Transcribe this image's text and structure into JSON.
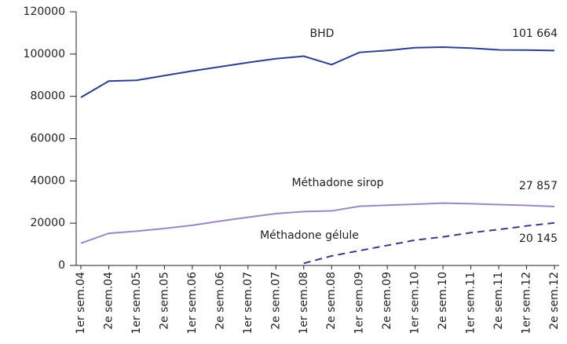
{
  "chart_data": {
    "type": "line",
    "categories": [
      "1er sem.04",
      "2e sem.04",
      "1er sem.05",
      "2e sem.05",
      "1er sem.06",
      "2e sem.06",
      "1er sem.07",
      "2e sem.07",
      "1er sem.08",
      "2e sem.08",
      "1er sem.09",
      "2e sem.09",
      "1er sem.10",
      "2e sem.10",
      "1er sem.11",
      "2e sem.11",
      "1er sem.12",
      "2e sem.12"
    ],
    "series": [
      {
        "name": "BHD",
        "color": "#2b3f8f",
        "dashed": false,
        "values": [
          79500,
          87200,
          87600,
          89800,
          92000,
          94000,
          96000,
          97800,
          99000,
          95000,
          100800,
          101700,
          103000,
          103300,
          102800,
          102000,
          101900,
          101664
        ],
        "value_labels": [
          null,
          null,
          null,
          null,
          null,
          null,
          null,
          null,
          null,
          null,
          null,
          null,
          null,
          null,
          null,
          null,
          null,
          "101 664"
        ]
      },
      {
        "name": "Méthadone sirop",
        "color": "#9b87c4",
        "dashed": false,
        "values": [
          10500,
          15200,
          16200,
          17500,
          19000,
          21000,
          22800,
          24500,
          25500,
          25800,
          28000,
          28500,
          29000,
          29500,
          29200,
          28800,
          28400,
          27857
        ],
        "value_labels": [
          null,
          null,
          null,
          null,
          null,
          null,
          null,
          null,
          null,
          null,
          null,
          null,
          null,
          null,
          null,
          null,
          null,
          "27 857"
        ]
      },
      {
        "name": "Méthadone gélule",
        "color": "#3b3a8a",
        "dashed": true,
        "values": [
          null,
          null,
          null,
          null,
          null,
          null,
          null,
          null,
          1000,
          4500,
          7000,
          9500,
          12000,
          13500,
          15500,
          17000,
          18700,
          20145
        ],
        "value_labels": [
          null,
          null,
          null,
          null,
          null,
          null,
          null,
          null,
          null,
          null,
          null,
          null,
          null,
          null,
          null,
          null,
          null,
          "20 145"
        ]
      }
    ],
    "ylim": [
      0,
      120000
    ],
    "yticks": [
      0,
      20000,
      40000,
      60000,
      80000,
      100000,
      120000
    ],
    "grid": false
  }
}
